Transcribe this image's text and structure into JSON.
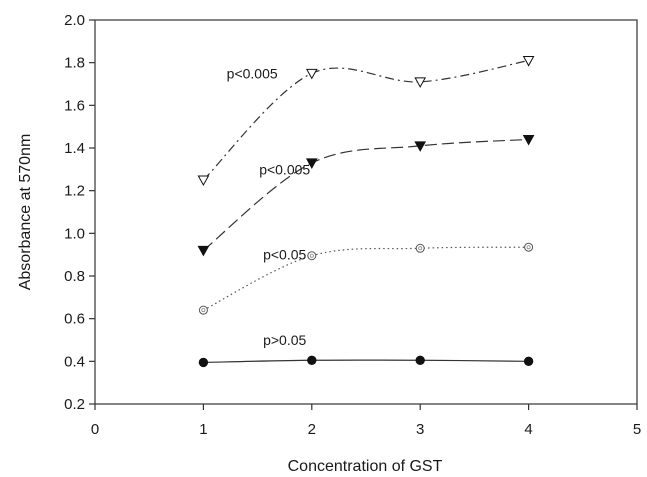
{
  "chart_data": {
    "type": "line",
    "title": "",
    "xlabel": "Concentration of GST",
    "ylabel": "Absorbance at 570nm",
    "xlim": [
      0,
      5
    ],
    "ylim": [
      0.2,
      2.0
    ],
    "xticks": [
      "0",
      "1",
      "2",
      "3",
      "4",
      "5"
    ],
    "yticks": [
      "0.2",
      "0.4",
      "0.6",
      "0.8",
      "1.0",
      "1.2",
      "1.4",
      "1.6",
      "1.8",
      "2.0"
    ],
    "grid": false,
    "legend": "none",
    "x": [
      1,
      2,
      3,
      4
    ],
    "series": [
      {
        "marker": "triangle-down-open",
        "line_style": "dash-dot",
        "color": "#333333",
        "values": [
          1.25,
          1.75,
          1.71,
          1.81
        ]
      },
      {
        "marker": "triangle-down-filled",
        "line_style": "long-dash",
        "color": "#333333",
        "values": [
          0.92,
          1.33,
          1.41,
          1.44
        ]
      },
      {
        "marker": "diamond-open",
        "line_style": "dotted",
        "color": "#555555",
        "values": [
          0.64,
          0.895,
          0.93,
          0.935
        ]
      },
      {
        "marker": "circle-filled",
        "line_style": "solid",
        "color": "#333333",
        "values": [
          0.395,
          0.405,
          0.405,
          0.4
        ]
      }
    ],
    "annotations": [
      {
        "text": "p<0.005",
        "x": 1.45,
        "y": 1.75
      },
      {
        "text": "p<0.005",
        "x": 1.75,
        "y": 1.3
      },
      {
        "text": "p<0.05",
        "x": 1.75,
        "y": 0.9
      },
      {
        "text": "p>0.05",
        "x": 1.75,
        "y": 0.5
      }
    ]
  }
}
